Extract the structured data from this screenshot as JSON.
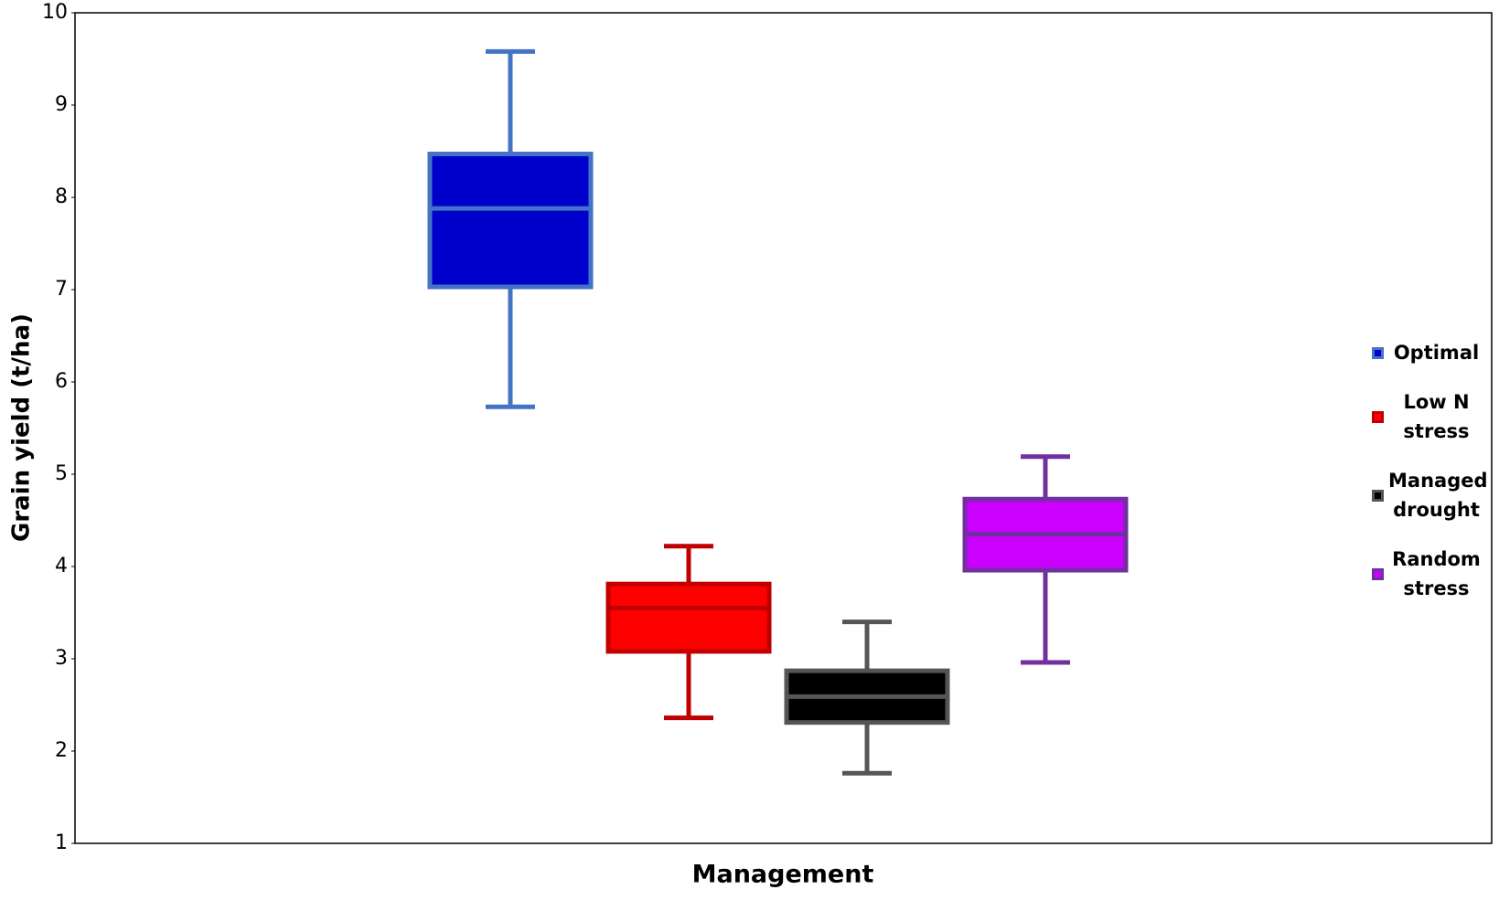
{
  "chart_data": {
    "type": "box",
    "y_label": "Grain yield (t/ha)",
    "x_label": "Management",
    "ylim": [
      1,
      10
    ],
    "yticks": [
      1,
      2,
      3,
      4,
      5,
      6,
      7,
      8,
      9,
      10
    ],
    "series": [
      {
        "name": "Optimal",
        "color": "#0000cc",
        "stroke": "#4472c4",
        "low": 5.73,
        "q1": 7.03,
        "median": 7.88,
        "q3": 8.47,
        "high": 9.58
      },
      {
        "name": "Low N stress",
        "color": "#ff0000",
        "stroke": "#c00000",
        "low": 2.36,
        "q1": 3.08,
        "median": 3.55,
        "q3": 3.81,
        "high": 4.22
      },
      {
        "name": "Managed drought",
        "color": "#000000",
        "stroke": "#555555",
        "low": 1.76,
        "q1": 2.31,
        "median": 2.59,
        "q3": 2.87,
        "high": 3.4
      },
      {
        "name": "Random stress",
        "color": "#cc00ff",
        "stroke": "#7030a0",
        "low": 2.96,
        "q1": 3.96,
        "median": 4.35,
        "q3": 4.73,
        "high": 5.19
      }
    ]
  }
}
